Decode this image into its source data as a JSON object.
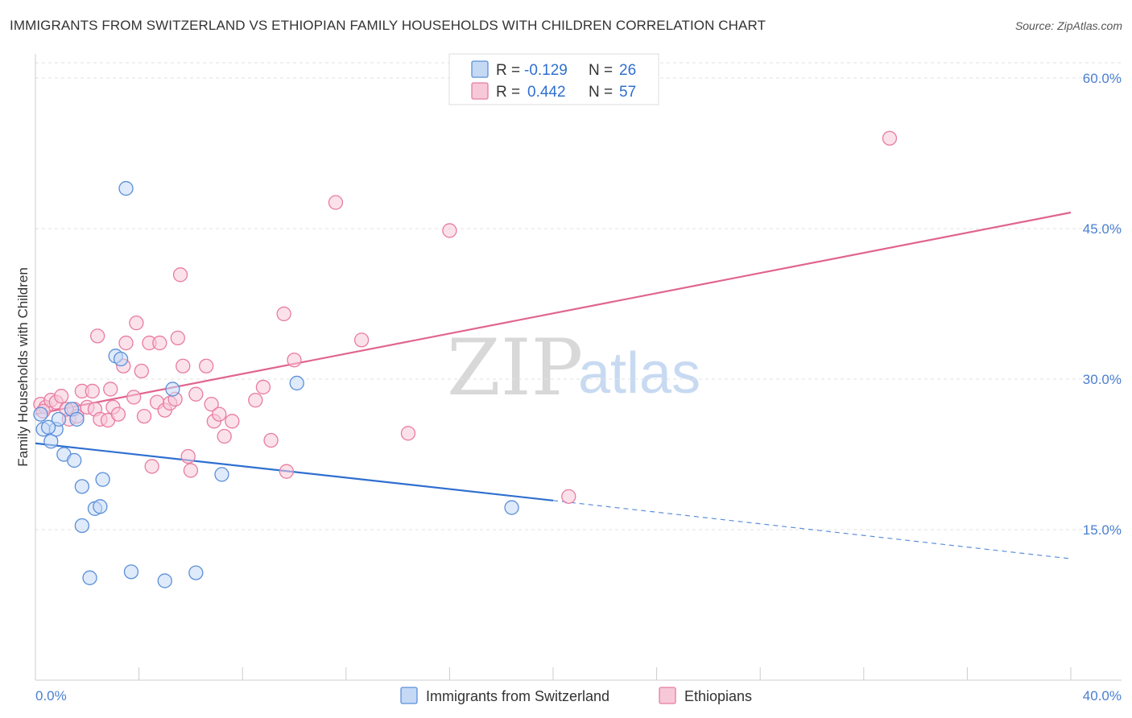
{
  "header": {
    "title": "IMMIGRANTS FROM SWITZERLAND VS ETHIOPIAN FAMILY HOUSEHOLDS WITH CHILDREN CORRELATION CHART",
    "source": "Source: ZipAtlas.com"
  },
  "colors": {
    "blue": "#5b8fd9",
    "blue_fill": "#c5d9f5",
    "blue_line": "#2f6fd0",
    "pink": "#e87ca0",
    "pink_fill": "#f7c9d8",
    "pink_line": "#e0648f"
  },
  "watermark": {
    "zip": "ZIP",
    "atlas": "atlas"
  },
  "legend": {
    "rows": [
      {
        "r_label": "R = ",
        "r_value": "-0.129",
        "n_label": "N = ",
        "n_value": "26"
      },
      {
        "r_label": "R = ",
        "r_value": "0.442",
        "n_label": "N = ",
        "n_value": "57"
      }
    ]
  },
  "chart_data": {
    "type": "scatter",
    "title": "IMMIGRANTS FROM SWITZERLAND VS ETHIOPIAN FAMILY HOUSEHOLDS WITH CHILDREN CORRELATION CHART",
    "xlabel": "",
    "ylabel": "Family Households with Children",
    "xlim": [
      0,
      40
    ],
    "ylim": [
      0,
      62
    ],
    "x_tick_labels": [
      "0.0%",
      "40.0%"
    ],
    "y_ticks": [
      15,
      30,
      45,
      60
    ],
    "y_tick_labels": [
      "15.0%",
      "30.0%",
      "45.0%",
      "60.0%"
    ],
    "grid": true,
    "legend_position": "bottom",
    "series": [
      {
        "name": "Immigrants from Switzerland",
        "points": [
          [
            0.3,
            25.0
          ],
          [
            0.6,
            23.8
          ],
          [
            0.8,
            25.0
          ],
          [
            0.9,
            26.0
          ],
          [
            1.1,
            22.5
          ],
          [
            1.4,
            27.0
          ],
          [
            1.5,
            21.9
          ],
          [
            1.6,
            26.0
          ],
          [
            1.8,
            19.3
          ],
          [
            1.8,
            15.4
          ],
          [
            2.1,
            10.2
          ],
          [
            2.3,
            17.1
          ],
          [
            2.5,
            17.3
          ],
          [
            2.6,
            20.0
          ],
          [
            3.1,
            32.3
          ],
          [
            3.3,
            32.0
          ],
          [
            3.5,
            49.0
          ],
          [
            3.7,
            10.8
          ],
          [
            5.0,
            9.9
          ],
          [
            5.3,
            29.0
          ],
          [
            6.2,
            10.7
          ],
          [
            7.2,
            20.5
          ],
          [
            10.1,
            29.6
          ],
          [
            18.4,
            17.2
          ],
          [
            0.2,
            26.5
          ],
          [
            0.5,
            25.2
          ]
        ],
        "trend": {
          "x0": 0,
          "y0": 23.6,
          "x1": 20,
          "y1": 17.9,
          "dashed_to_x": 40,
          "dashed_to_y": 12.1
        }
      },
      {
        "name": "Ethiopians",
        "points": [
          [
            0.2,
            27.5
          ],
          [
            0.4,
            27.2
          ],
          [
            0.6,
            27.9
          ],
          [
            0.8,
            27.7
          ],
          [
            1.0,
            28.3
          ],
          [
            1.3,
            26.0
          ],
          [
            1.5,
            27.0
          ],
          [
            1.6,
            26.3
          ],
          [
            1.8,
            28.8
          ],
          [
            2.0,
            27.2
          ],
          [
            2.2,
            28.8
          ],
          [
            2.3,
            27.0
          ],
          [
            2.4,
            34.3
          ],
          [
            2.5,
            26.0
          ],
          [
            2.8,
            25.9
          ],
          [
            2.9,
            29.0
          ],
          [
            3.0,
            27.2
          ],
          [
            3.2,
            26.5
          ],
          [
            3.4,
            31.3
          ],
          [
            3.5,
            33.6
          ],
          [
            3.8,
            28.2
          ],
          [
            3.9,
            35.6
          ],
          [
            4.1,
            30.8
          ],
          [
            4.2,
            26.3
          ],
          [
            4.4,
            33.6
          ],
          [
            4.5,
            21.3
          ],
          [
            4.7,
            27.7
          ],
          [
            4.8,
            33.6
          ],
          [
            5.0,
            26.9
          ],
          [
            5.2,
            27.6
          ],
          [
            5.4,
            28.0
          ],
          [
            5.5,
            34.1
          ],
          [
            5.6,
            40.4
          ],
          [
            5.7,
            31.3
          ],
          [
            5.9,
            22.3
          ],
          [
            6.0,
            20.9
          ],
          [
            6.2,
            28.5
          ],
          [
            6.6,
            31.3
          ],
          [
            6.8,
            27.5
          ],
          [
            6.9,
            25.8
          ],
          [
            7.1,
            26.5
          ],
          [
            7.3,
            24.3
          ],
          [
            7.6,
            25.8
          ],
          [
            8.5,
            27.9
          ],
          [
            8.8,
            29.2
          ],
          [
            9.1,
            23.9
          ],
          [
            9.6,
            36.5
          ],
          [
            9.7,
            20.8
          ],
          [
            10.0,
            31.9
          ],
          [
            11.6,
            47.6
          ],
          [
            12.6,
            33.9
          ],
          [
            14.4,
            24.6
          ],
          [
            16.0,
            44.8
          ],
          [
            20.6,
            18.3
          ],
          [
            33.0,
            54.0
          ],
          [
            0.3,
            26.8
          ],
          [
            1.2,
            27.0
          ]
        ],
        "trend": {
          "x0": 0,
          "y0": 26.5,
          "x1": 40,
          "y1": 46.6
        }
      }
    ]
  }
}
